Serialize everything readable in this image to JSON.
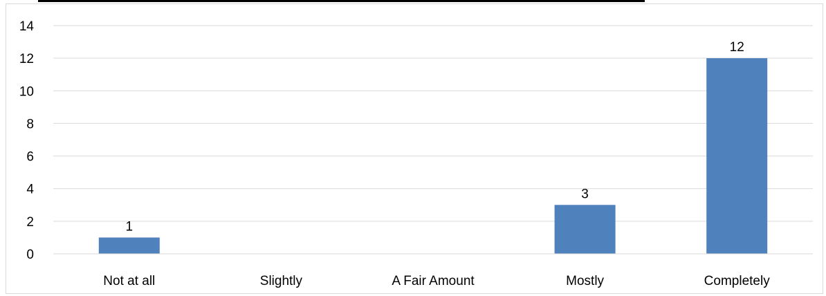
{
  "chart_data": {
    "type": "bar",
    "title": "",
    "xlabel": "",
    "ylabel": "",
    "categories": [
      "Not at all",
      "Slightly",
      "A Fair Amount",
      "Mostly",
      "Completely"
    ],
    "values": [
      1,
      0,
      0,
      3,
      12
    ],
    "data_labels": [
      "1",
      "",
      "",
      "3",
      "12"
    ],
    "ylim": [
      0,
      14
    ],
    "yticks": [
      "0",
      "2",
      "4",
      "6",
      "8",
      "10",
      "12",
      "14"
    ],
    "grid": true,
    "legend": "none",
    "colors": {
      "bar": "#4f81bd",
      "grid": "#d9d9d9",
      "axis": "#d9d9d9",
      "text": "#000000"
    }
  }
}
